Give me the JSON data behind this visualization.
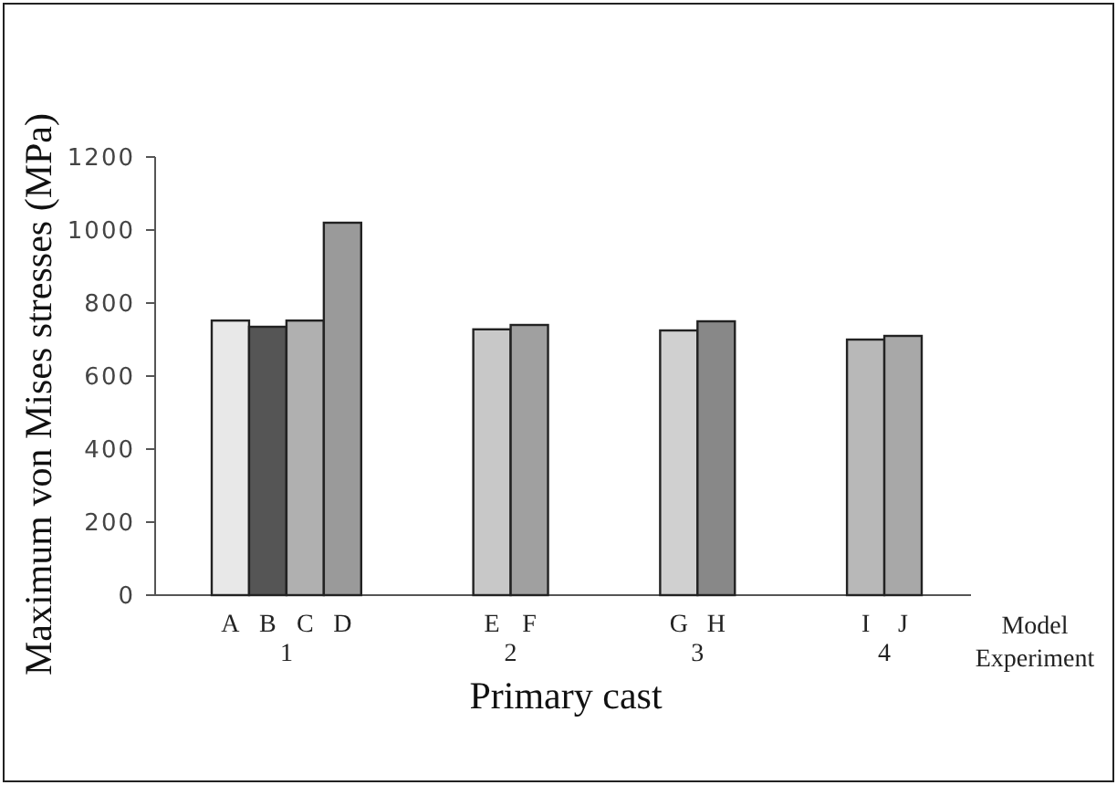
{
  "chart_data": {
    "type": "bar",
    "xlabel": "Primary cast",
    "ylabel": "Maximum von Mises stresses (MPa)",
    "categories": [
      "A",
      "B",
      "C",
      "D",
      null,
      null,
      null,
      "E",
      "F",
      null,
      null,
      null,
      "G",
      "H",
      null,
      null,
      null,
      "I",
      "J"
    ],
    "values": [
      752,
      735,
      752,
      1020,
      null,
      null,
      null,
      728,
      740,
      null,
      null,
      null,
      725,
      750,
      null,
      null,
      null,
      700,
      710
    ],
    "colors": [
      "#e8e8e8",
      "#555555",
      "#b0b0b0",
      "#9a9a9a",
      null,
      null,
      null,
      "#c8c8c8",
      "#a0a0a0",
      null,
      null,
      null,
      "#d0d0d0",
      "#888888",
      null,
      null,
      null,
      "#b8b8b8",
      "#a8a8a8"
    ],
    "ylim": [
      0,
      1200
    ],
    "yticks": [
      0,
      200,
      400,
      600,
      800,
      1000,
      1200
    ],
    "grid": false,
    "annotations": [
      "1",
      "2",
      "3",
      "4",
      "Model",
      "Experiment"
    ]
  }
}
